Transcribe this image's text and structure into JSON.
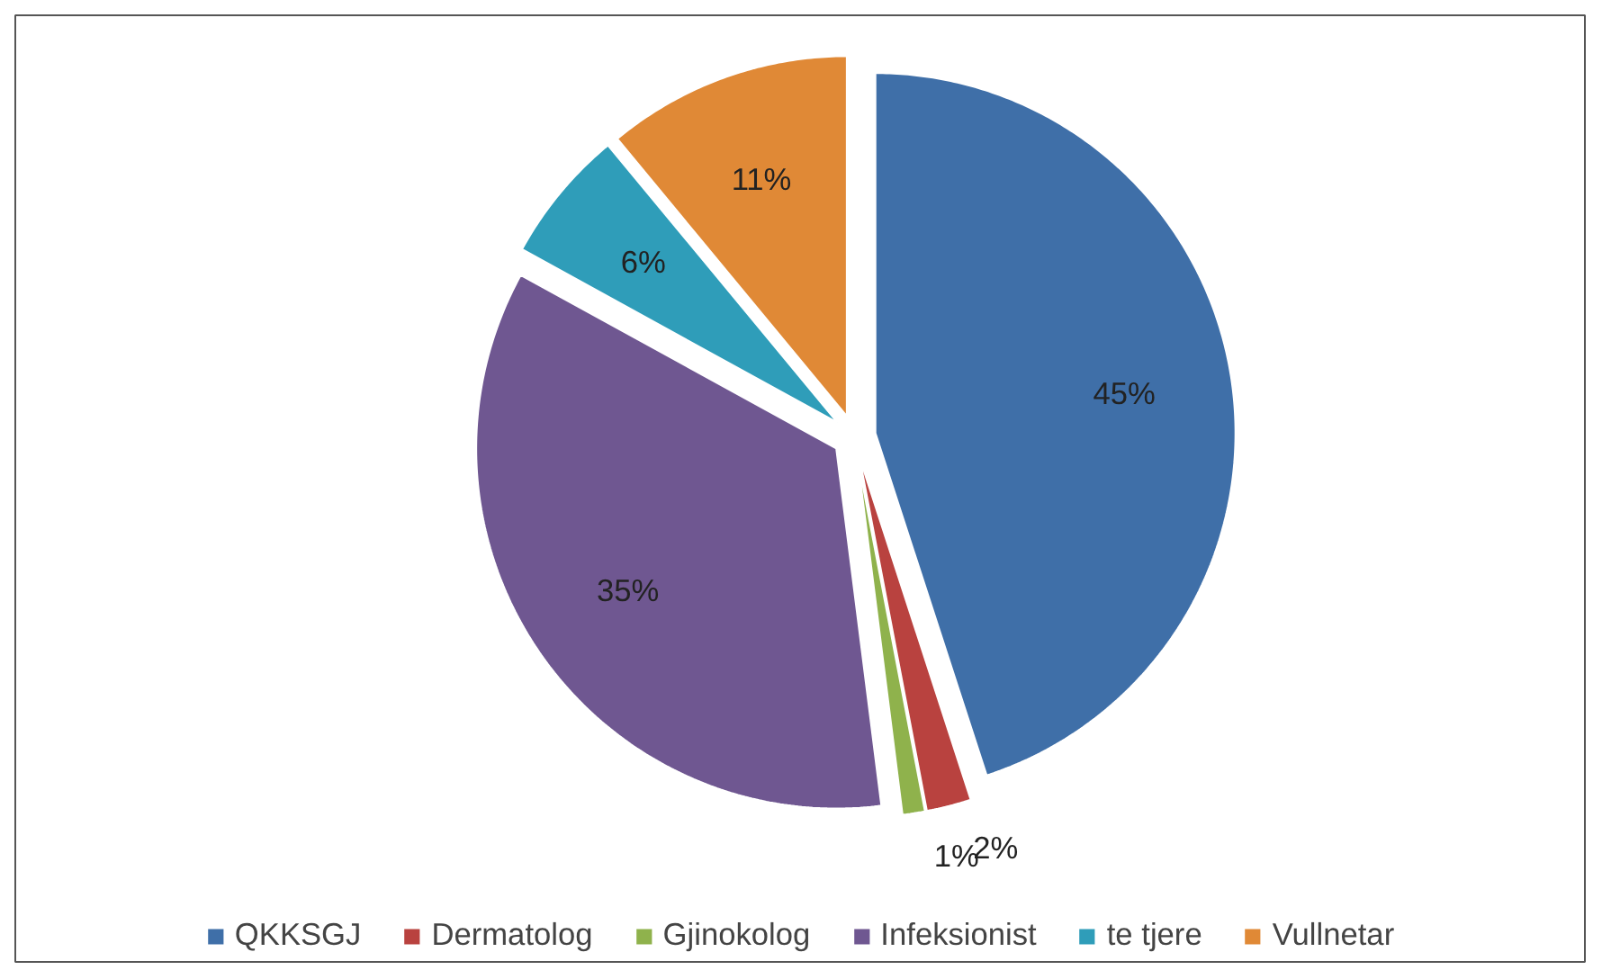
{
  "chart_data": {
    "type": "pie",
    "categories": [
      "QKKSGJ",
      "Dermatolog",
      "Gjinokolog",
      "Infeksionist",
      "te tjere",
      "Vullnetar"
    ],
    "values": [
      45,
      2,
      1,
      35,
      6,
      11
    ],
    "colors": [
      "#3f6fa8",
      "#b9423f",
      "#8fb24c",
      "#6f5791",
      "#2f9db9",
      "#e08936"
    ],
    "value_labels": [
      "45%",
      "2%",
      "1%",
      "35%",
      "6%",
      "11%"
    ],
    "legend": "bottom"
  }
}
